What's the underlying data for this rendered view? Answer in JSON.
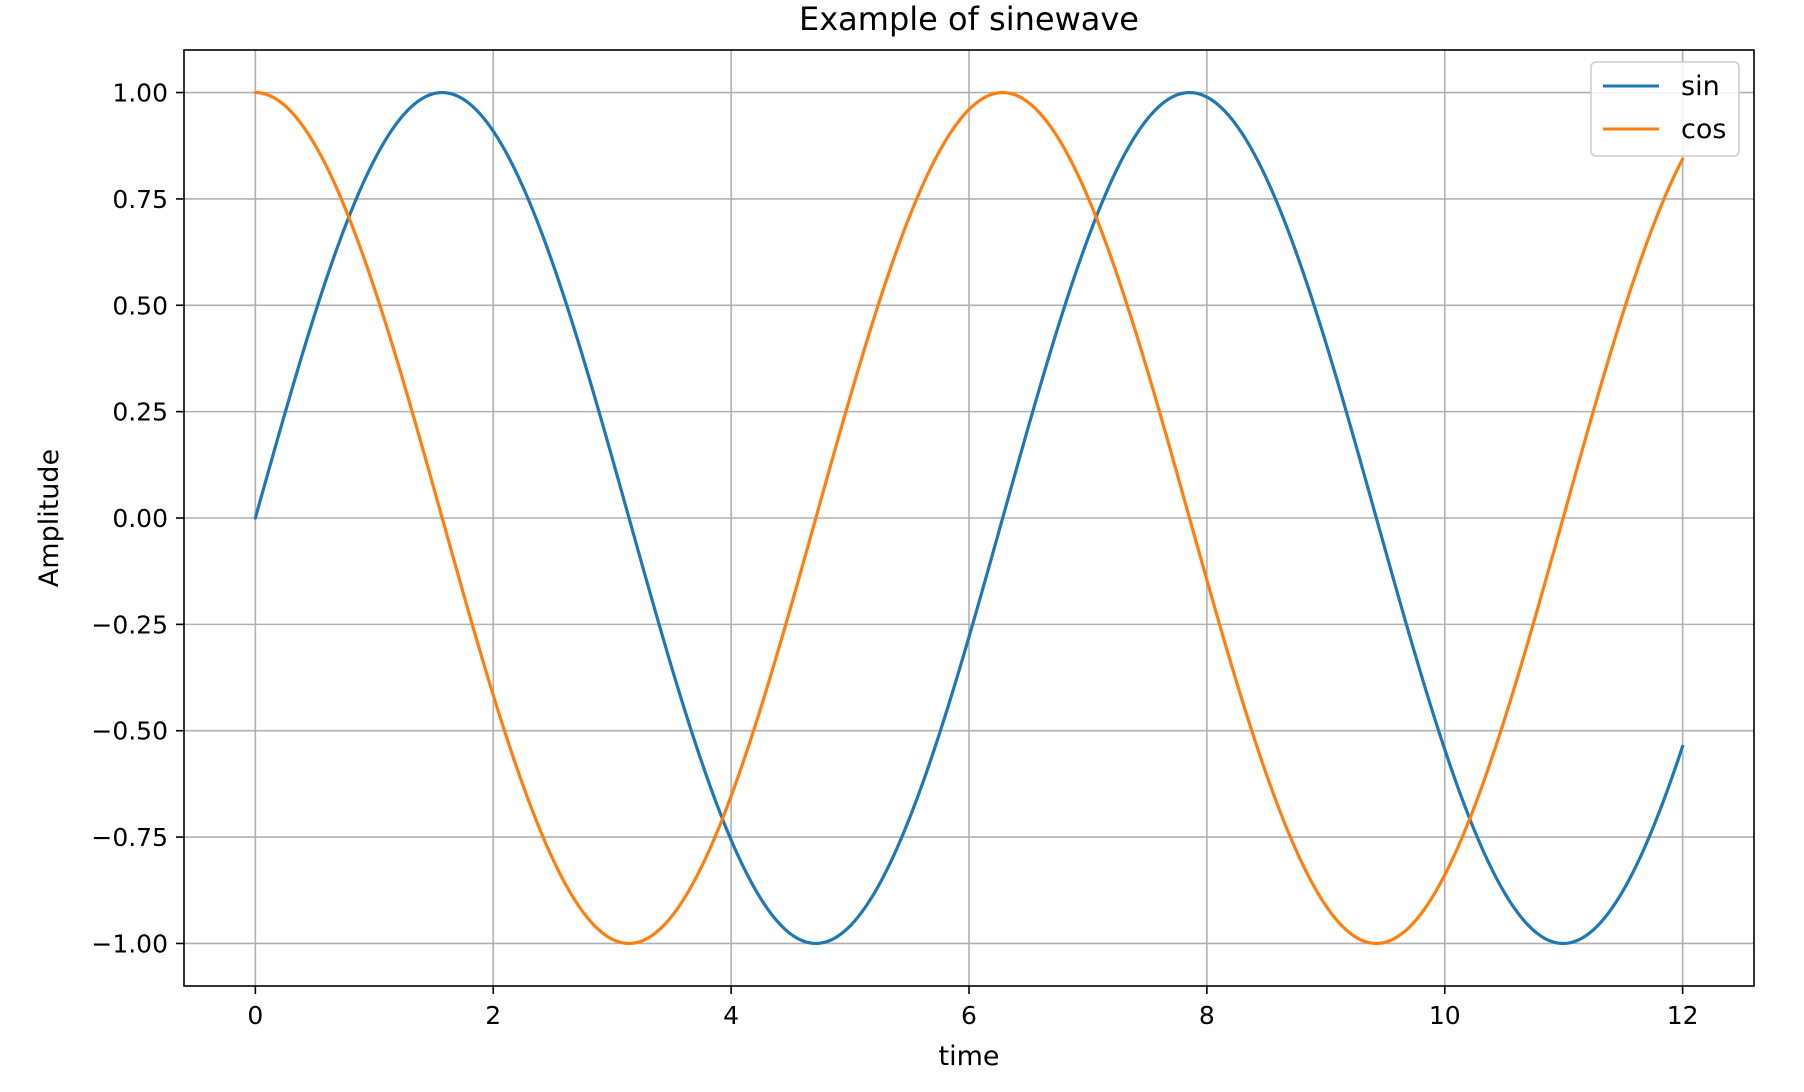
{
  "chart_data": {
    "type": "line",
    "title": "Example of sinewave",
    "xlabel": "time",
    "ylabel": "Amplitude",
    "xlim": [
      -0.6,
      12.6
    ],
    "ylim": [
      -1.1,
      1.1
    ],
    "x_range": [
      0,
      12
    ],
    "xticks": [
      0,
      2,
      4,
      6,
      8,
      10,
      12
    ],
    "xtick_labels": [
      "0",
      "2",
      "4",
      "6",
      "8",
      "10",
      "12"
    ],
    "yticks": [
      1.0,
      0.75,
      0.5,
      0.25,
      0.0,
      -0.25,
      -0.5,
      -0.75,
      -1.0
    ],
    "ytick_labels": [
      "1.00",
      "0.75",
      "0.50",
      "0.25",
      "0.00",
      "−0.25",
      "−0.50",
      "−0.75",
      "−1.00"
    ],
    "grid": true,
    "legend_position": "top-right",
    "series": [
      {
        "name": "sin",
        "function": "sin",
        "color": "#1f77b4",
        "x": [
          0,
          1.0,
          1.5708,
          2.0,
          3.0,
          3.1416,
          4.0,
          4.7124,
          5.0,
          6.0,
          6.2832,
          7.0,
          7.854,
          8.0,
          9.0,
          9.4248,
          10.0,
          10.9956,
          11.0,
          12.0
        ],
        "y": [
          0.0,
          0.841,
          1.0,
          0.909,
          0.141,
          0.0,
          -0.757,
          -1.0,
          -0.959,
          -0.279,
          0.0,
          0.657,
          1.0,
          0.989,
          0.412,
          0.0,
          -0.544,
          -1.0,
          -1.0,
          -0.537
        ]
      },
      {
        "name": "cos",
        "function": "cos",
        "color": "#ff7f0e",
        "x": [
          0,
          1.0,
          1.5708,
          2.0,
          3.0,
          3.1416,
          4.0,
          4.7124,
          5.0,
          6.0,
          6.2832,
          7.0,
          7.854,
          8.0,
          9.0,
          9.4248,
          10.0,
          10.9956,
          11.0,
          12.0
        ],
        "y": [
          1.0,
          0.54,
          0.0,
          -0.416,
          -0.99,
          -1.0,
          -0.654,
          0.0,
          0.284,
          0.96,
          1.0,
          0.754,
          0.0,
          -0.146,
          -0.911,
          -1.0,
          -0.839,
          0.0,
          0.004,
          0.844
        ]
      }
    ]
  },
  "colors": {
    "grid": "#b0b0b0",
    "axes": "#000000",
    "legend_border": "#cccccc"
  }
}
